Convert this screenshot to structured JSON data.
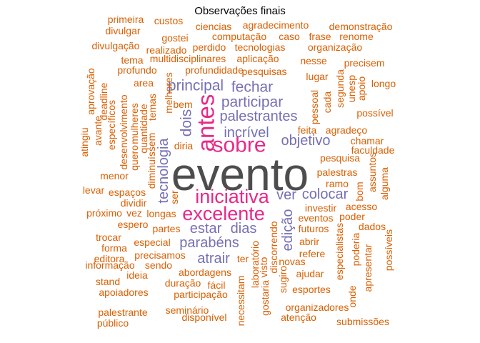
{
  "chart_data": {
    "type": "wordcloud",
    "title": "Observações finais",
    "colors": {
      "top": "#4d4d4d",
      "high": "#e7298a",
      "mid": "#7570b3",
      "low": "#d95f02"
    },
    "words": [
      {
        "text": "evento",
        "freq": 10,
        "tier": "top"
      },
      {
        "text": "antes",
        "freq": 5,
        "tier": "high"
      },
      {
        "text": "sobre",
        "freq": 5,
        "tier": "high"
      },
      {
        "text": "iniciativa",
        "freq": 5,
        "tier": "high"
      },
      {
        "text": "excelente",
        "freq": 5,
        "tier": "high"
      },
      {
        "text": "principal",
        "freq": 4,
        "tier": "mid"
      },
      {
        "text": "fechar",
        "freq": 4,
        "tier": "mid"
      },
      {
        "text": "participar",
        "freq": 4,
        "tier": "mid"
      },
      {
        "text": "palestrantes",
        "freq": 4,
        "tier": "mid"
      },
      {
        "text": "incrível",
        "freq": 4,
        "tier": "mid"
      },
      {
        "text": "objetivo",
        "freq": 4,
        "tier": "mid"
      },
      {
        "text": "dois",
        "freq": 4,
        "tier": "mid"
      },
      {
        "text": "tecnologia",
        "freq": 4,
        "tier": "mid"
      },
      {
        "text": "ver",
        "freq": 4,
        "tier": "mid"
      },
      {
        "text": "colocar",
        "freq": 4,
        "tier": "mid"
      },
      {
        "text": "estar",
        "freq": 4,
        "tier": "mid"
      },
      {
        "text": "dias",
        "freq": 4,
        "tier": "mid"
      },
      {
        "text": "parabéns",
        "freq": 4,
        "tier": "mid"
      },
      {
        "text": "edição",
        "freq": 4,
        "tier": "mid"
      },
      {
        "text": "atrair",
        "freq": 4,
        "tier": "mid"
      },
      {
        "text": "primeira",
        "freq": 2,
        "tier": "low"
      },
      {
        "text": "custos",
        "freq": 2,
        "tier": "low"
      },
      {
        "text": "divulgar",
        "freq": 2,
        "tier": "low"
      },
      {
        "text": "gostei",
        "freq": 2,
        "tier": "low"
      },
      {
        "text": "ciencias",
        "freq": 2,
        "tier": "low"
      },
      {
        "text": "agradecimento",
        "freq": 2,
        "tier": "low"
      },
      {
        "text": "demonstração",
        "freq": 2,
        "tier": "low"
      },
      {
        "text": "computação",
        "freq": 2,
        "tier": "low"
      },
      {
        "text": "caso",
        "freq": 2,
        "tier": "low"
      },
      {
        "text": "frase",
        "freq": 2,
        "tier": "low"
      },
      {
        "text": "renome",
        "freq": 2,
        "tier": "low"
      },
      {
        "text": "divulgação",
        "freq": 2,
        "tier": "low"
      },
      {
        "text": "realizado",
        "freq": 2,
        "tier": "low"
      },
      {
        "text": "perdido",
        "freq": 2,
        "tier": "low"
      },
      {
        "text": "tecnologias",
        "freq": 2,
        "tier": "low"
      },
      {
        "text": "organização",
        "freq": 2,
        "tier": "low"
      },
      {
        "text": "tema",
        "freq": 2,
        "tier": "low"
      },
      {
        "text": "multidisciplinares",
        "freq": 2,
        "tier": "low"
      },
      {
        "text": "aplicação",
        "freq": 2,
        "tier": "low"
      },
      {
        "text": "nesse",
        "freq": 2,
        "tier": "low"
      },
      {
        "text": "precisem",
        "freq": 2,
        "tier": "low"
      },
      {
        "text": "profundo",
        "freq": 2,
        "tier": "low"
      },
      {
        "text": "profundidade",
        "freq": 2,
        "tier": "low"
      },
      {
        "text": "pesquisas",
        "freq": 2,
        "tier": "low"
      },
      {
        "text": "lugar",
        "freq": 2,
        "tier": "low"
      },
      {
        "text": "aprovação",
        "freq": 2,
        "tier": "low"
      },
      {
        "text": "area",
        "freq": 2,
        "tier": "low"
      },
      {
        "text": "longo",
        "freq": 2,
        "tier": "low"
      },
      {
        "text": "deadline",
        "freq": 2,
        "tier": "low"
      },
      {
        "text": "temas",
        "freq": 2,
        "tier": "low"
      },
      {
        "text": "melhores",
        "freq": 2,
        "tier": "low"
      },
      {
        "text": "pessoal",
        "freq": 2,
        "tier": "low"
      },
      {
        "text": "segunda",
        "freq": 2,
        "tier": "low"
      },
      {
        "text": "unesp",
        "freq": 2,
        "tier": "low"
      },
      {
        "text": "apoio",
        "freq": 2,
        "tier": "low"
      },
      {
        "text": "bem",
        "freq": 2,
        "tier": "low"
      },
      {
        "text": "cada",
        "freq": 2,
        "tier": "low"
      },
      {
        "text": "possível",
        "freq": 2,
        "tier": "low"
      },
      {
        "text": "avante",
        "freq": 2,
        "tier": "low"
      },
      {
        "text": "específicos",
        "freq": 2,
        "tier": "low"
      },
      {
        "text": "desenvolvimento",
        "freq": 2,
        "tier": "low"
      },
      {
        "text": "mulheres",
        "freq": 2,
        "tier": "low"
      },
      {
        "text": "quantidade",
        "freq": 2,
        "tier": "low"
      },
      {
        "text": "feita",
        "freq": 2,
        "tier": "low"
      },
      {
        "text": "agradeço",
        "freq": 2,
        "tier": "low"
      },
      {
        "text": "chamar",
        "freq": 2,
        "tier": "low"
      },
      {
        "text": "atingiu",
        "freq": 2,
        "tier": "low"
      },
      {
        "text": "diria",
        "freq": 2,
        "tier": "low"
      },
      {
        "text": "faculdade",
        "freq": 2,
        "tier": "low"
      },
      {
        "text": "quero",
        "freq": 2,
        "tier": "low"
      },
      {
        "text": "diminuíssem",
        "freq": 2,
        "tier": "low"
      },
      {
        "text": "pesquisa",
        "freq": 2,
        "tier": "low"
      },
      {
        "text": "menor",
        "freq": 2,
        "tier": "low"
      },
      {
        "text": "palestras",
        "freq": 2,
        "tier": "low"
      },
      {
        "text": "ramo",
        "freq": 2,
        "tier": "low"
      },
      {
        "text": "assuntos",
        "freq": 2,
        "tier": "low"
      },
      {
        "text": "alguma",
        "freq": 2,
        "tier": "low"
      },
      {
        "text": "levar",
        "freq": 2,
        "tier": "low"
      },
      {
        "text": "espaços",
        "freq": 2,
        "tier": "low"
      },
      {
        "text": "ser",
        "freq": 2,
        "tier": "low"
      },
      {
        "text": "bom",
        "freq": 2,
        "tier": "low"
      },
      {
        "text": "dividir",
        "freq": 2,
        "tier": "low"
      },
      {
        "text": "investir",
        "freq": 2,
        "tier": "low"
      },
      {
        "text": "acesso",
        "freq": 2,
        "tier": "low"
      },
      {
        "text": "próximo",
        "freq": 2,
        "tier": "low"
      },
      {
        "text": "vez",
        "freq": 2,
        "tier": "low"
      },
      {
        "text": "longas",
        "freq": 2,
        "tier": "low"
      },
      {
        "text": "eventos",
        "freq": 2,
        "tier": "low"
      },
      {
        "text": "poder",
        "freq": 2,
        "tier": "low"
      },
      {
        "text": "espero",
        "freq": 2,
        "tier": "low"
      },
      {
        "text": "partes",
        "freq": 2,
        "tier": "low"
      },
      {
        "text": "futuros",
        "freq": 2,
        "tier": "low"
      },
      {
        "text": "dados",
        "freq": 2,
        "tier": "low"
      },
      {
        "text": "trocar",
        "freq": 2,
        "tier": "low"
      },
      {
        "text": "especial",
        "freq": 2,
        "tier": "low"
      },
      {
        "text": "abrir",
        "freq": 2,
        "tier": "low"
      },
      {
        "text": "forma",
        "freq": 2,
        "tier": "low"
      },
      {
        "text": "discorrendo",
        "freq": 2,
        "tier": "low"
      },
      {
        "text": "especialistas",
        "freq": 2,
        "tier": "low"
      },
      {
        "text": "poderia",
        "freq": 2,
        "tier": "low"
      },
      {
        "text": "possíveis",
        "freq": 2,
        "tier": "low"
      },
      {
        "text": "editora",
        "freq": 2,
        "tier": "low"
      },
      {
        "text": "precisamos",
        "freq": 2,
        "tier": "low"
      },
      {
        "text": "ter",
        "freq": 2,
        "tier": "low"
      },
      {
        "text": "refere",
        "freq": 2,
        "tier": "low"
      },
      {
        "text": "informação",
        "freq": 2,
        "tier": "low"
      },
      {
        "text": "sendo",
        "freq": 2,
        "tier": "low"
      },
      {
        "text": "laboratório",
        "freq": 2,
        "tier": "low"
      },
      {
        "text": "visto",
        "freq": 2,
        "tier": "low"
      },
      {
        "text": "novas",
        "freq": 2,
        "tier": "low"
      },
      {
        "text": "apresentar",
        "freq": 2,
        "tier": "low"
      },
      {
        "text": "stand",
        "freq": 2,
        "tier": "low"
      },
      {
        "text": "ideia",
        "freq": 2,
        "tier": "low"
      },
      {
        "text": "abordagens",
        "freq": 2,
        "tier": "low"
      },
      {
        "text": "sugiro",
        "freq": 2,
        "tier": "low"
      },
      {
        "text": "ajudar",
        "freq": 2,
        "tier": "low"
      },
      {
        "text": "apoiadores",
        "freq": 2,
        "tier": "low"
      },
      {
        "text": "duração",
        "freq": 2,
        "tier": "low"
      },
      {
        "text": "fácil",
        "freq": 2,
        "tier": "low"
      },
      {
        "text": "necessitam",
        "freq": 2,
        "tier": "low"
      },
      {
        "text": "gostaria",
        "freq": 2,
        "tier": "low"
      },
      {
        "text": "esportes",
        "freq": 2,
        "tier": "low"
      },
      {
        "text": "onde",
        "freq": 2,
        "tier": "low"
      },
      {
        "text": "participação",
        "freq": 2,
        "tier": "low"
      },
      {
        "text": "seminário",
        "freq": 2,
        "tier": "low"
      },
      {
        "text": "organizadores",
        "freq": 2,
        "tier": "low"
      },
      {
        "text": "palestrante",
        "freq": 2,
        "tier": "low"
      },
      {
        "text": "disponível",
        "freq": 2,
        "tier": "low"
      },
      {
        "text": "atenção",
        "freq": 2,
        "tier": "low"
      },
      {
        "text": "público",
        "freq": 2,
        "tier": "low"
      },
      {
        "text": "submissões",
        "freq": 2,
        "tier": "low"
      }
    ]
  }
}
